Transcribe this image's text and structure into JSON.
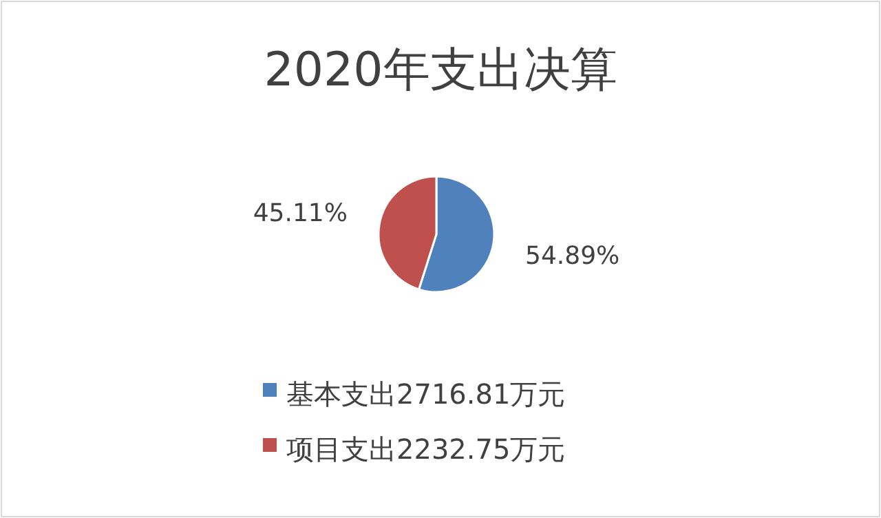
{
  "chart_data": {
    "type": "pie",
    "title": "2020年支出决算",
    "categories": [
      "基本支出2716.81万元",
      "项目支出2232.75万元"
    ],
    "values": [
      54.89,
      45.11
    ],
    "colors": [
      "#4f81bd",
      "#c0504d"
    ],
    "value_labels": [
      "54.89%",
      "45.11%"
    ],
    "legend": "bottom"
  }
}
